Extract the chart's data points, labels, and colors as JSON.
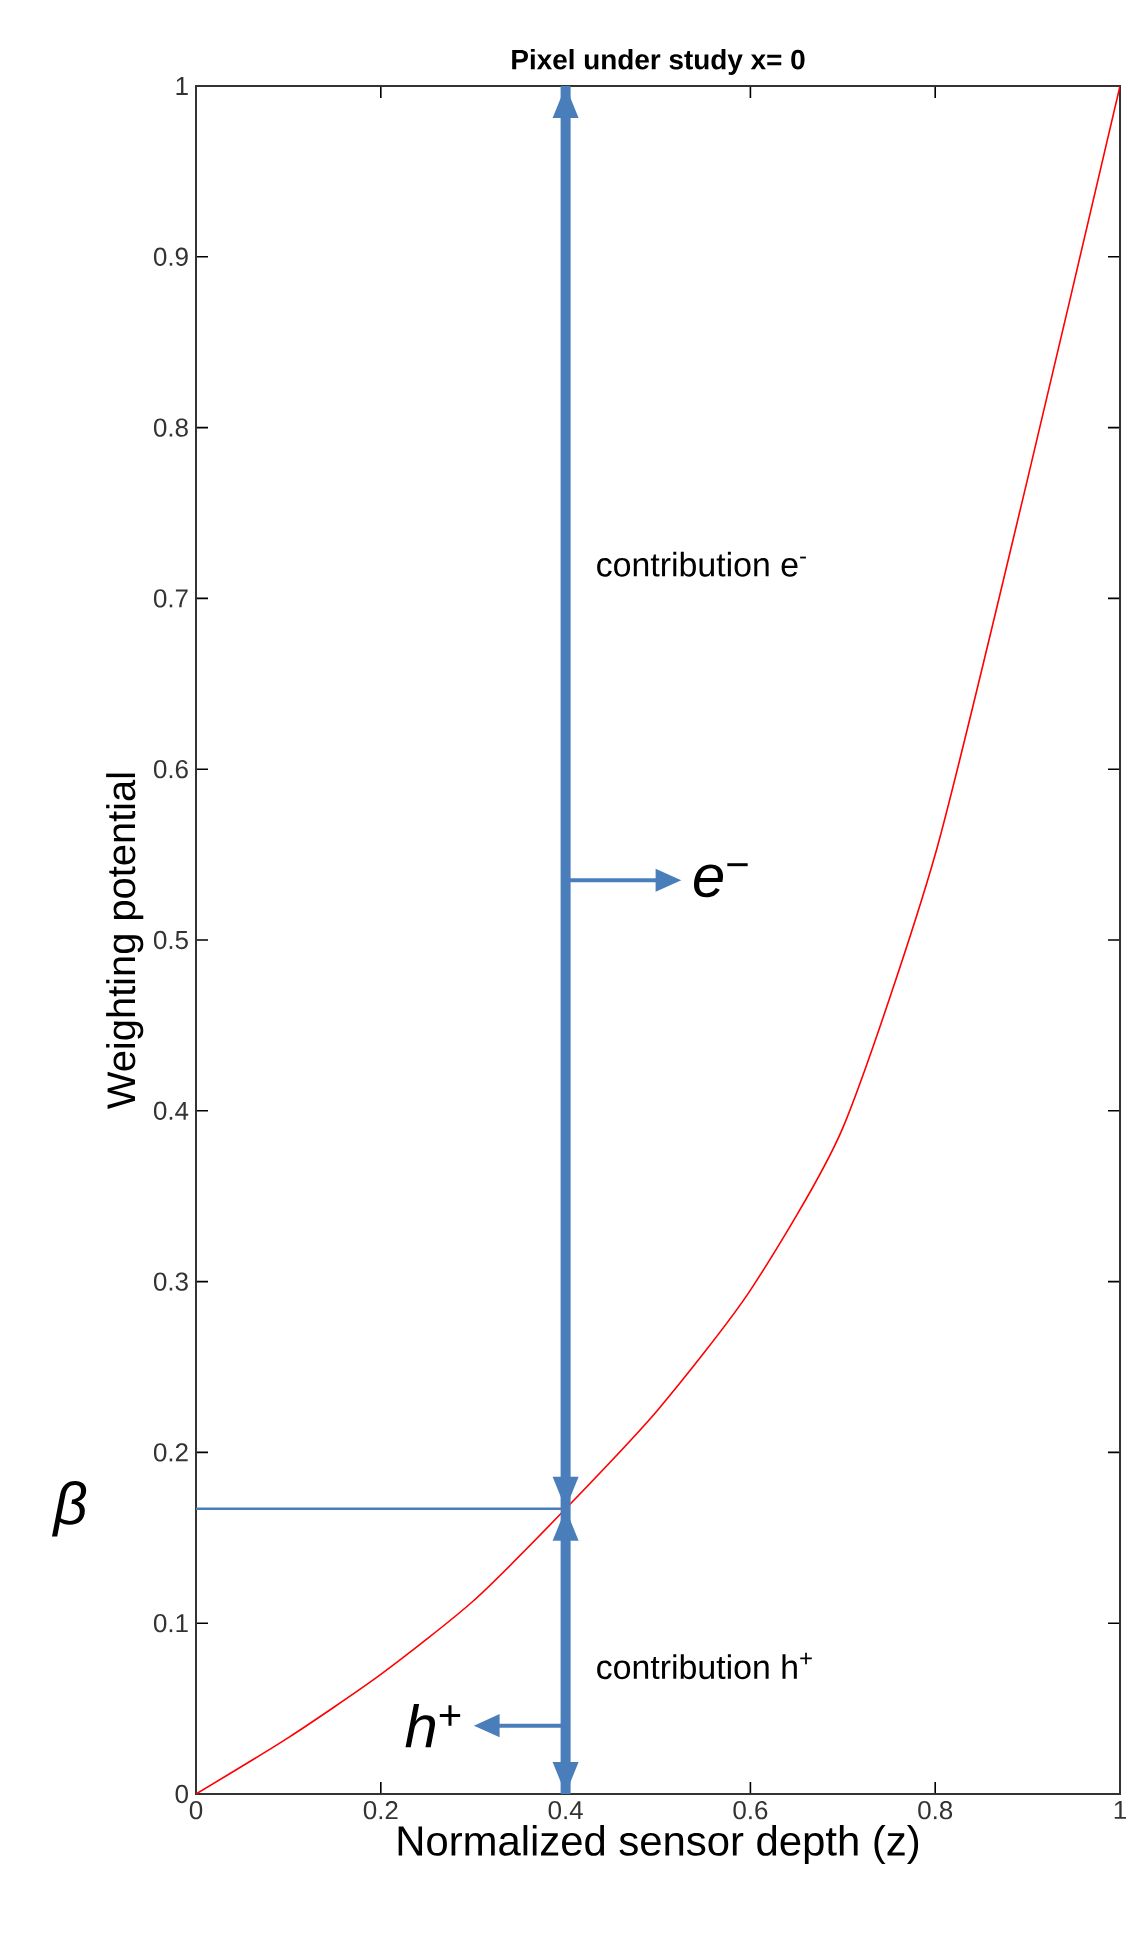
{
  "chart_data": {
    "type": "line",
    "title": "Pixel under study x= 0",
    "xlabel": "Normalized sensor depth (z)",
    "ylabel": "Weighting potential",
    "series": [
      {
        "color": "#ff0000",
        "x": [
          0,
          0.1,
          0.2,
          0.3,
          0.4,
          0.5,
          0.6,
          0.7,
          0.8,
          0.9,
          1
        ],
        "values": [
          0,
          0.033,
          0.07,
          0.113,
          0.167,
          0.225,
          0.295,
          0.39,
          0.55,
          0.77,
          1
        ]
      }
    ],
    "xlim": [
      0,
      1
    ],
    "ylim": [
      0,
      1
    ],
    "xticks": [
      0,
      0.2,
      0.4,
      0.6,
      0.8,
      1
    ],
    "yticks": [
      0,
      0.1,
      0.2,
      0.3,
      0.4,
      0.5,
      0.6,
      0.7,
      0.8,
      0.9,
      1
    ],
    "ref_lines": [
      {
        "axis": "x",
        "value": 0.4,
        "color": "#4a7ebb"
      },
      {
        "axis": "y",
        "value": 0.167,
        "label": "β",
        "color": "#4a7ebb"
      }
    ],
    "annotations": [
      "contribution e$^{-}$",
      "contribution h$^{+}$",
      {
        "text": "*e*$^{−}$",
        "x": 0.4,
        "y": 0.535
      },
      {
        "text": "*h*$^{+}$",
        "x": 0.4,
        "y": 0.04
      }
    ],
    "grid": false,
    "marker": "none",
    "line_style": "solid"
  }
}
